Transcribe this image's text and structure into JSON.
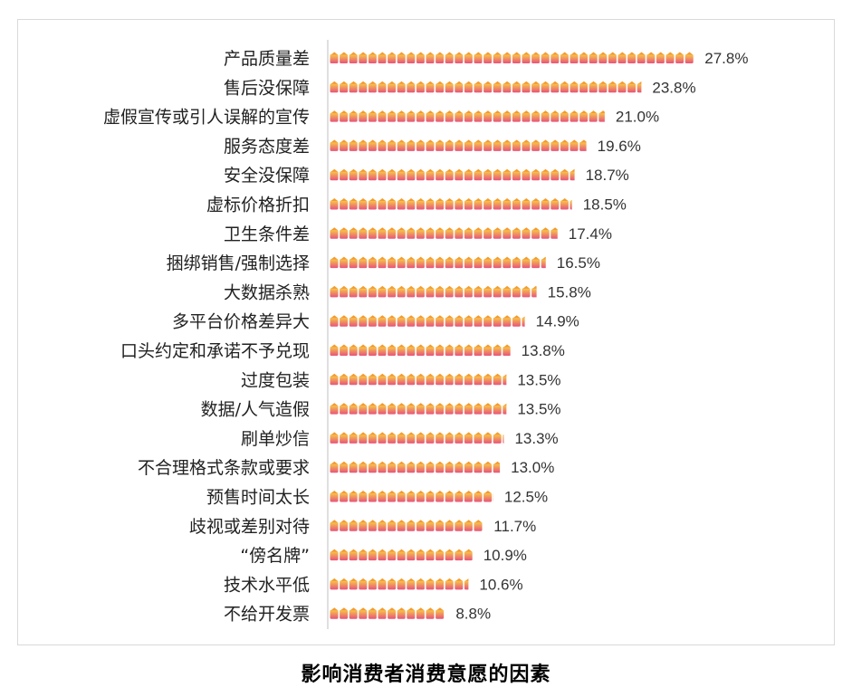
{
  "chart_data": {
    "type": "bar",
    "orientation": "horizontal",
    "title": "影响消费者消费意愿的因素",
    "xlabel": "",
    "ylabel": "",
    "xlim": [
      0,
      30
    ],
    "grid": false,
    "legend": "none",
    "bar_style": "pictograph-wallet-icons",
    "colors": {
      "icon_top": "#f7c948",
      "icon_bottom": "#e8537a",
      "icon_tab": "#f59a2f"
    },
    "categories": [
      "产品质量差",
      "售后没保障",
      "虚假宣传或引人误解的宣传",
      "服务态度差",
      "安全没保障",
      "虚标价格折扣",
      "卫生条件差",
      "捆绑销售/强制选择",
      "大数据杀熟",
      "多平台价格差异大",
      "口头约定和承诺不予兑现",
      "过度包装",
      "数据/人气造假",
      "刷单炒信",
      "不合理格式条款或要求",
      "预售时间太长",
      "歧视或差别对待",
      "“傍名牌”",
      "技术水平低",
      "不给开发票"
    ],
    "values": [
      27.8,
      23.8,
      21.0,
      19.6,
      18.7,
      18.5,
      17.4,
      16.5,
      15.8,
      14.9,
      13.8,
      13.5,
      13.5,
      13.3,
      13.0,
      12.5,
      11.7,
      10.9,
      10.6,
      8.8
    ],
    "value_labels": [
      "27.8%",
      "23.8%",
      "21.0%",
      "19.6%",
      "18.7%",
      "18.5%",
      "17.4%",
      "16.5%",
      "15.8%",
      "14.9%",
      "13.8%",
      "13.5%",
      "13.5%",
      "13.3%",
      "13.0%",
      "12.5%",
      "11.7%",
      "10.9%",
      "10.6%",
      "8.8%"
    ]
  }
}
